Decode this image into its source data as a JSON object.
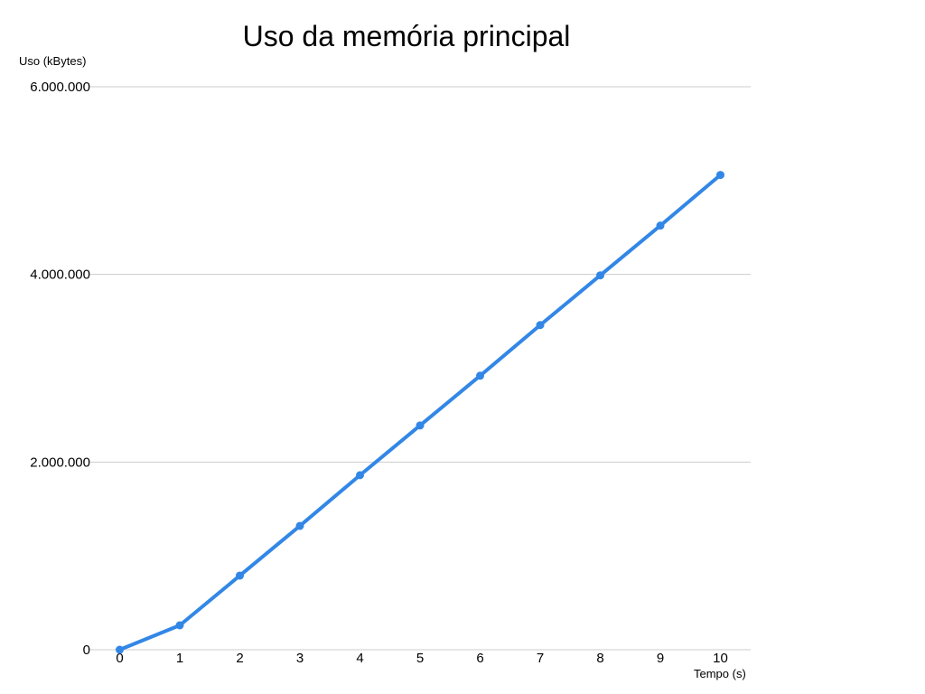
{
  "chart_data": {
    "type": "line",
    "title": "Uso da memória principal",
    "xlabel": "Tempo (s)",
    "ylabel": "Uso (kBytes)",
    "x": [
      0,
      1,
      2,
      3,
      4,
      5,
      6,
      7,
      8,
      9,
      10
    ],
    "x_tick_labels": [
      "0",
      "1",
      "2",
      "3",
      "4",
      "5",
      "6",
      "7",
      "8",
      "9",
      "10"
    ],
    "y_ticks": [
      0,
      2000000,
      4000000,
      6000000
    ],
    "y_tick_labels": [
      "0",
      "2.000.000",
      "4.000.000",
      "6.000.000"
    ],
    "ylim": [
      0,
      6000000
    ],
    "xlim": [
      0,
      10
    ],
    "grid": "horizontal",
    "legend": "none",
    "series": [
      {
        "values": [
          0,
          260000,
          790000,
          1320000,
          1860000,
          2390000,
          2920000,
          3460000,
          3990000,
          4520000,
          5060000
        ],
        "color": "#3287e6"
      }
    ]
  }
}
